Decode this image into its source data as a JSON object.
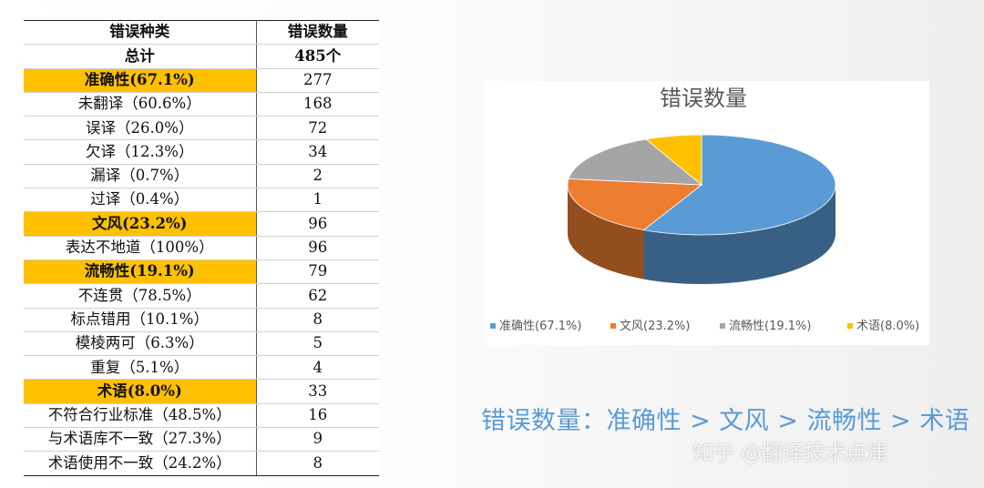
{
  "table": {
    "header": [
      "错误种类",
      "错误数量"
    ],
    "rows": [
      {
        "label": "总计",
        "value": "485个",
        "style": "bold"
      },
      {
        "label": "准确性(67.1%)",
        "value": "277",
        "style": "hl"
      },
      {
        "label": "未翻译（60.6%）",
        "value": "168",
        "style": ""
      },
      {
        "label": "误译（26.0%）",
        "value": "72",
        "style": ""
      },
      {
        "label": "欠译（12.3%）",
        "value": "34",
        "style": ""
      },
      {
        "label": "漏译（0.7%）",
        "value": "2",
        "style": ""
      },
      {
        "label": "过译（0.4%）",
        "value": "1",
        "style": ""
      },
      {
        "label": "文风(23.2%)",
        "value": "96",
        "style": "hl"
      },
      {
        "label": "表达不地道（100%）",
        "value": "96",
        "style": ""
      },
      {
        "label": "流畅性(19.1%)",
        "value": "79",
        "style": "hl"
      },
      {
        "label": "不连贯（78.5%）",
        "value": "62",
        "style": ""
      },
      {
        "label": "标点错用（10.1%）",
        "value": "8",
        "style": ""
      },
      {
        "label": "模棱两可（6.3%）",
        "value": "5",
        "style": ""
      },
      {
        "label": "重复（5.1%）",
        "value": "4",
        "style": ""
      },
      {
        "label": "术语(8.0%)",
        "value": "33",
        "style": "hl"
      },
      {
        "label": "不符合行业标准（48.5%）",
        "value": "16",
        "style": ""
      },
      {
        "label": "与术语库不一致（27.3%）",
        "value": "9",
        "style": ""
      },
      {
        "label": "术语使用不一致（24.2%）",
        "value": "8",
        "style": ""
      }
    ]
  },
  "chart_data": {
    "type": "pie",
    "title": "错误数量",
    "categories": [
      "准确性(67.1%)",
      "文风(23.2%)",
      "流畅性(19.1%)",
      "术语(8.0%)"
    ],
    "values": [
      277,
      96,
      79,
      33
    ],
    "colors": [
      "#5b9bd5",
      "#ed7d31",
      "#a5a5a5",
      "#ffc000"
    ],
    "legend_position": "bottom",
    "three_d": true
  },
  "summary": "错误数量：准确性 > 文风 > 流畅性 > 术语",
  "watermark": "知乎 @翻译技术点津"
}
